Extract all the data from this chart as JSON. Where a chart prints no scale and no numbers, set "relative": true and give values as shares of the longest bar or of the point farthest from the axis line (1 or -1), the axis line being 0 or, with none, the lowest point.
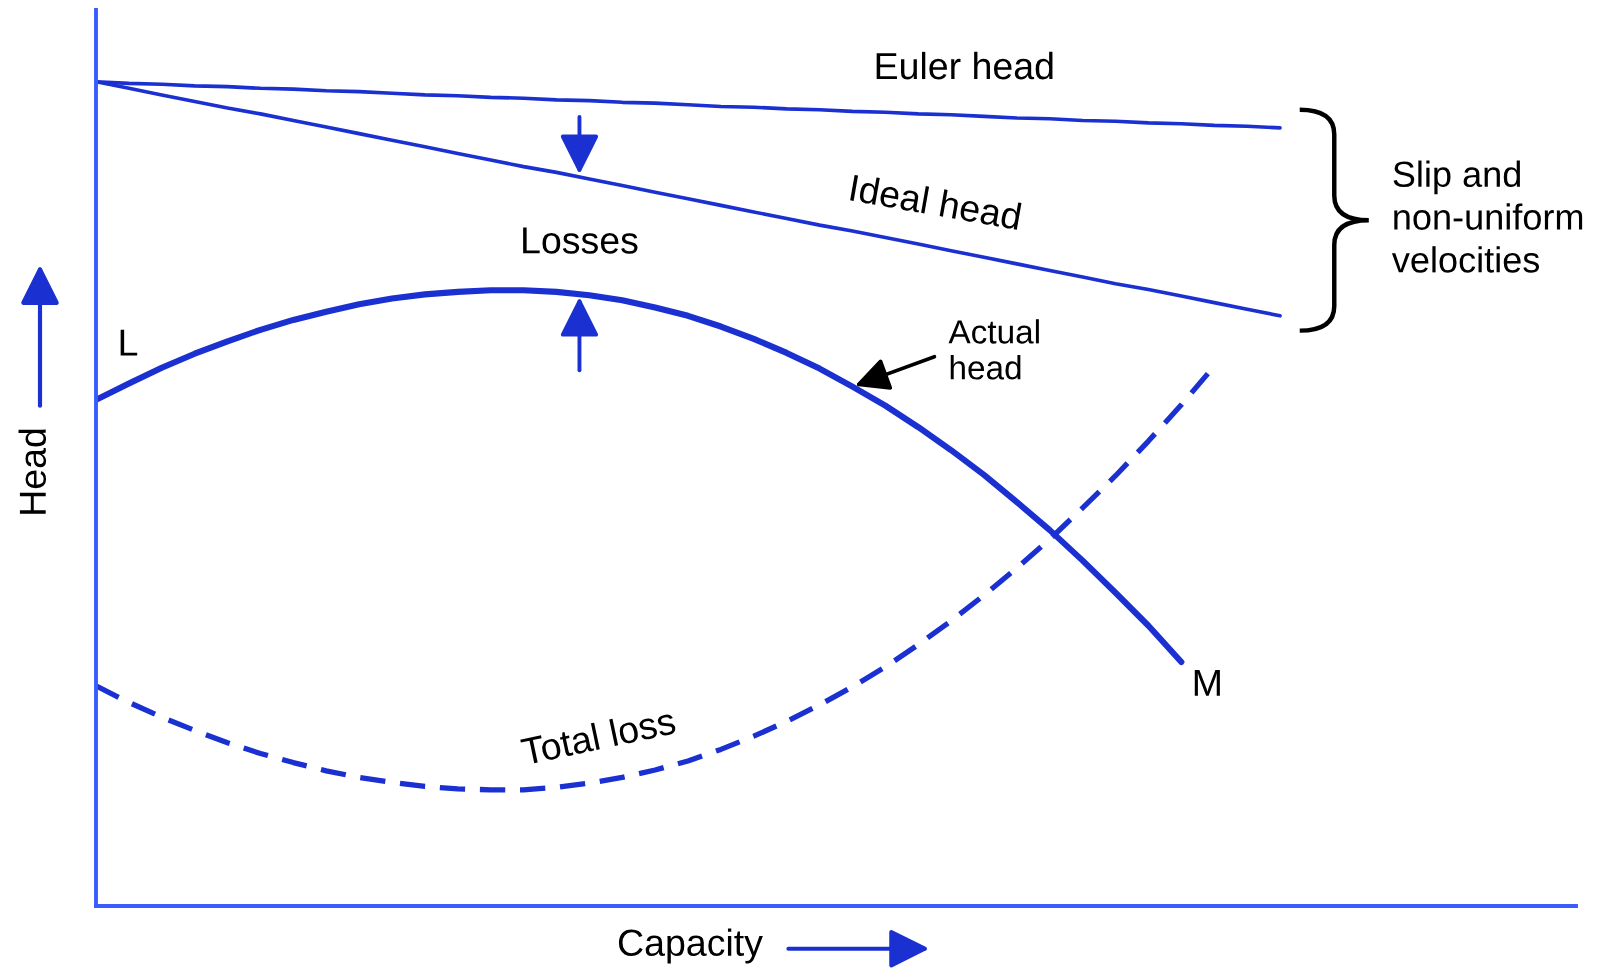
{
  "chart_data": {
    "type": "line",
    "relative": true,
    "xlabel": "Capacity",
    "ylabel": "Head",
    "line_style": "solid",
    "categories": [
      null,
      null,
      null,
      null,
      null,
      null,
      null,
      null,
      null,
      null,
      null,
      null,
      null,
      null,
      null,
      null,
      null,
      null,
      null,
      null,
      null,
      null,
      null,
      null,
      null,
      null,
      null,
      null,
      null,
      null,
      null,
      null,
      null,
      null,
      null,
      null,
      null,
      null,
      null,
      null,
      null,
      null,
      null,
      null,
      null,
      null
    ],
    "series": [
      {
        "name": "Euler head",
        "color": "#1a30d0",
        "values": [
          1.0,
          0.998,
          0.997,
          0.995,
          0.994,
          0.992,
          0.991,
          0.989,
          0.988,
          0.986,
          0.984,
          0.983,
          0.981,
          0.98,
          0.978,
          0.977,
          0.975,
          0.974,
          0.972,
          0.97,
          0.969,
          0.967,
          0.966,
          0.964,
          0.963,
          0.961,
          0.96,
          0.958,
          0.956,
          0.955,
          0.953,
          0.952,
          0.95,
          0.949,
          0.947,
          0.946,
          0.944,
          null,
          null,
          null,
          null,
          null,
          null,
          null,
          null,
          null
        ]
      },
      {
        "name": "Ideal head",
        "color": "#1a30d0",
        "values": [
          1.0,
          0.992,
          0.984,
          0.976,
          0.968,
          0.961,
          0.953,
          0.945,
          0.937,
          0.929,
          0.921,
          0.913,
          0.905,
          0.897,
          0.89,
          0.882,
          0.874,
          0.866,
          0.858,
          0.85,
          0.842,
          0.834,
          0.826,
          0.819,
          0.811,
          0.803,
          0.795,
          0.787,
          0.779,
          0.771,
          0.763,
          0.755,
          0.748,
          0.74,
          0.732,
          0.724,
          0.716,
          null,
          null,
          null,
          null,
          null,
          null,
          null,
          null,
          null
        ]
      },
      {
        "name": "Actual\nhead",
        "color": "#1a30d0",
        "values": [
          0.614,
          0.634,
          0.653,
          0.67,
          0.685,
          0.699,
          0.711,
          0.721,
          0.73,
          0.737,
          0.742,
          0.745,
          0.747,
          0.747,
          0.745,
          0.741,
          0.735,
          0.726,
          0.716,
          0.703,
          0.688,
          0.671,
          0.652,
          0.63,
          0.607,
          0.581,
          0.553,
          0.523,
          0.49,
          0.456,
          0.419,
          0.38,
          0.34,
          0.296,
          null,
          null,
          null,
          null,
          null,
          null,
          null,
          null,
          null,
          null,
          null,
          null
        ]
      },
      {
        "name": "Total loss",
        "color": "#1a30d0",
        "line_style": "dashed",
        "values": [
          0.267,
          0.247,
          0.229,
          0.213,
          0.198,
          0.185,
          0.174,
          0.164,
          0.156,
          0.15,
          0.145,
          0.142,
          0.141,
          0.141,
          0.144,
          0.149,
          0.156,
          0.165,
          0.176,
          0.19,
          0.206,
          0.224,
          0.244,
          0.266,
          0.29,
          0.317,
          0.346,
          0.377,
          0.41,
          0.445,
          0.483,
          0.522,
          0.564,
          0.608,
          0.655,
          null,
          null,
          null,
          null,
          null,
          null,
          null,
          null,
          null,
          null,
          null
        ]
      }
    ],
    "annotations": [
      "Losses",
      "Slip and\nnon-uniform\nvelocities",
      "L",
      "M"
    ]
  }
}
